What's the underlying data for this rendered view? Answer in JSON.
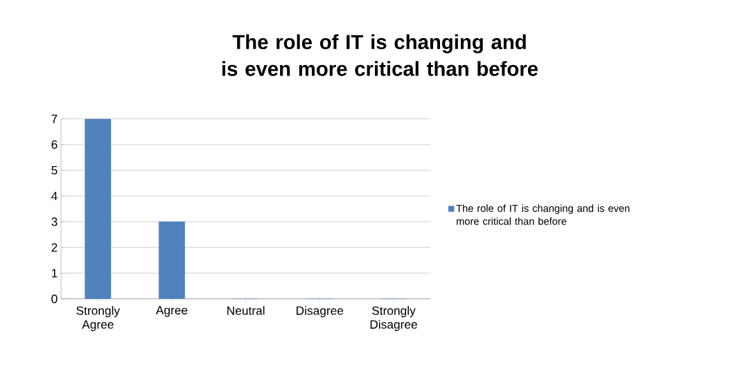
{
  "chart_data": {
    "type": "bar",
    "title": "The role of IT is changing and is even more critical than before",
    "categories": [
      "Strongly Agree",
      "Agree",
      "Neutral",
      "Disagree",
      "Strongly Disagree"
    ],
    "series": [
      {
        "name": "The role of IT is changing and is even more critical than before",
        "color": "#4f81bd",
        "values": [
          7,
          3,
          0,
          0,
          0
        ]
      }
    ],
    "ylim": [
      0,
      7
    ],
    "yticks": [
      0,
      1,
      2,
      3,
      4,
      5,
      6,
      7
    ],
    "grid": "y",
    "legend": "right"
  }
}
